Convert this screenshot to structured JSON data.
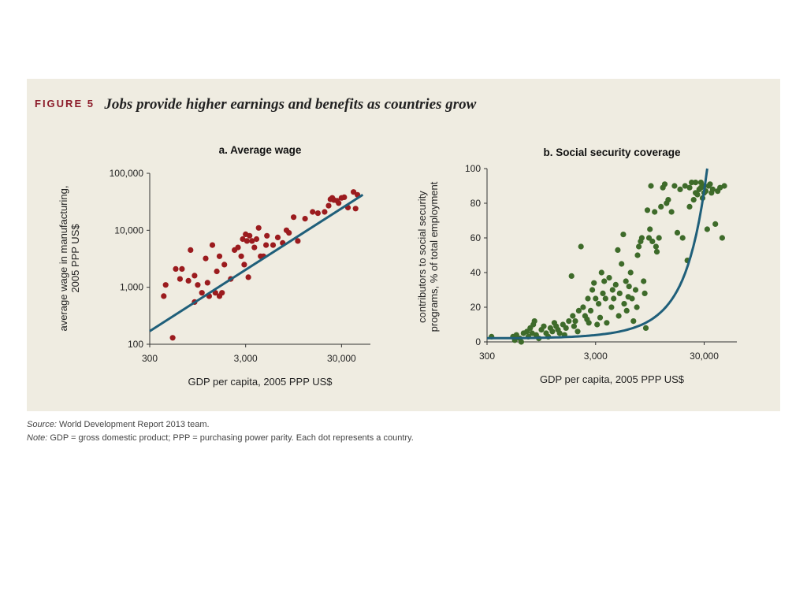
{
  "figure": {
    "label": "FIGURE 5",
    "title": "Jobs provide higher earnings and benefits as countries grow"
  },
  "colors": {
    "panel_bg": "#efece1",
    "wage_dots": "#9b1b1e",
    "coverage_dots": "#3e6b2a",
    "fit_line": "#1f5f7a",
    "label_accent": "#8c1c2a"
  },
  "notes": {
    "source_label": "Source:",
    "source_text": " World Development Report 2013 team.",
    "note_label": "Note:",
    "note_text": " GDP = gross domestic product; PPP = purchasing power parity. Each dot represents a country."
  },
  "chart_data": [
    {
      "type": "scatter",
      "title": "a.  Average wage",
      "xlabel": "GDP per capita, 2005 PPP US$",
      "ylabel_lines": [
        "average wage in manufacturing,",
        "2005 PPP US$"
      ],
      "x_scale": "log",
      "y_scale": "log",
      "xlim": [
        300,
        60000
      ],
      "ylim": [
        100,
        100000
      ],
      "x_ticks": [
        300,
        3000,
        30000
      ],
      "x_tick_labels": [
        "300",
        "3,000",
        "30,000"
      ],
      "y_ticks": [
        100,
        1000,
        10000,
        100000
      ],
      "y_tick_labels": [
        "100",
        "1,000",
        "10,000",
        "100,000"
      ],
      "trend_line": {
        "x": [
          300,
          50000
        ],
        "y": [
          170,
          42000
        ]
      },
      "points": [
        [
          420,
          700
        ],
        [
          440,
          1100
        ],
        [
          520,
          130
        ],
        [
          560,
          2100
        ],
        [
          620,
          1400
        ],
        [
          650,
          2100
        ],
        [
          760,
          1300
        ],
        [
          800,
          4500
        ],
        [
          880,
          1600
        ],
        [
          880,
          550
        ],
        [
          950,
          1100
        ],
        [
          1050,
          800
        ],
        [
          1150,
          3200
        ],
        [
          1200,
          1200
        ],
        [
          1250,
          700
        ],
        [
          1350,
          5500
        ],
        [
          1450,
          800
        ],
        [
          1500,
          1900
        ],
        [
          1600,
          3500
        ],
        [
          1600,
          700
        ],
        [
          1700,
          800
        ],
        [
          1800,
          2500
        ],
        [
          2100,
          1400
        ],
        [
          2300,
          4500
        ],
        [
          2500,
          5000
        ],
        [
          2700,
          3500
        ],
        [
          2800,
          7000
        ],
        [
          2900,
          2500
        ],
        [
          3000,
          8500
        ],
        [
          3100,
          6500
        ],
        [
          3200,
          1500
        ],
        [
          3300,
          8000
        ],
        [
          3500,
          6500
        ],
        [
          3700,
          5000
        ],
        [
          3900,
          7000
        ],
        [
          4100,
          11000
        ],
        [
          4300,
          3500
        ],
        [
          4600,
          3500
        ],
        [
          4900,
          5500
        ],
        [
          5000,
          8000
        ],
        [
          5800,
          5500
        ],
        [
          6500,
          7500
        ],
        [
          7300,
          6000
        ],
        [
          8000,
          10000
        ],
        [
          8500,
          9000
        ],
        [
          9500,
          17000
        ],
        [
          10500,
          6500
        ],
        [
          12500,
          16000
        ],
        [
          15000,
          21000
        ],
        [
          17000,
          20000
        ],
        [
          20000,
          21000
        ],
        [
          22000,
          27000
        ],
        [
          23000,
          35000
        ],
        [
          24000,
          37000
        ],
        [
          25000,
          34000
        ],
        [
          27000,
          33000
        ],
        [
          30000,
          37000
        ],
        [
          32000,
          38000
        ],
        [
          28000,
          30000
        ],
        [
          35000,
          25000
        ],
        [
          40000,
          47000
        ],
        [
          44000,
          42000
        ],
        [
          42000,
          24000
        ]
      ]
    },
    {
      "type": "scatter",
      "title": "b.  Social security coverage",
      "xlabel": "GDP per capita, 2005 PPP US$",
      "ylabel_lines": [
        "contributors to social security",
        "programs, % of total employment"
      ],
      "x_scale": "log",
      "y_scale": "linear",
      "xlim": [
        300,
        60000
      ],
      "ylim": [
        0,
        100
      ],
      "x_ticks": [
        300,
        3000,
        30000
      ],
      "x_tick_labels": [
        "300",
        "3,000",
        "30,000"
      ],
      "y_ticks": [
        0,
        20,
        40,
        60,
        80,
        100
      ],
      "y_tick_labels": [
        "0",
        "20",
        "40",
        "60",
        "80",
        "100"
      ],
      "trend_curve": {
        "x_start": 300,
        "x_end": 32000,
        "a": 2.14,
        "b": 0.0001188
      },
      "points": [
        [
          330,
          3
        ],
        [
          520,
          3
        ],
        [
          540,
          1
        ],
        [
          560,
          4
        ],
        [
          600,
          2
        ],
        [
          620,
          0
        ],
        [
          650,
          5
        ],
        [
          700,
          6
        ],
        [
          720,
          3
        ],
        [
          750,
          8
        ],
        [
          780,
          5
        ],
        [
          800,
          10
        ],
        [
          820,
          12
        ],
        [
          850,
          4
        ],
        [
          900,
          2
        ],
        [
          950,
          7
        ],
        [
          1000,
          9
        ],
        [
          1050,
          5
        ],
        [
          1100,
          3
        ],
        [
          1150,
          8
        ],
        [
          1200,
          6
        ],
        [
          1250,
          11
        ],
        [
          1300,
          9
        ],
        [
          1350,
          7
        ],
        [
          1400,
          5
        ],
        [
          1500,
          10
        ],
        [
          1550,
          4
        ],
        [
          1600,
          8
        ],
        [
          1700,
          12
        ],
        [
          1800,
          38
        ],
        [
          1850,
          15
        ],
        [
          1900,
          9
        ],
        [
          1950,
          12
        ],
        [
          2050,
          6
        ],
        [
          2100,
          18
        ],
        [
          2200,
          55
        ],
        [
          2300,
          20
        ],
        [
          2400,
          15
        ],
        [
          2500,
          13
        ],
        [
          2550,
          25
        ],
        [
          2600,
          11
        ],
        [
          2700,
          18
        ],
        [
          2800,
          30
        ],
        [
          2900,
          34
        ],
        [
          3000,
          25
        ],
        [
          3100,
          10
        ],
        [
          3200,
          22
        ],
        [
          3300,
          14
        ],
        [
          3400,
          40
        ],
        [
          3500,
          28
        ],
        [
          3600,
          35
        ],
        [
          3700,
          25
        ],
        [
          3800,
          11
        ],
        [
          4000,
          37
        ],
        [
          4200,
          20
        ],
        [
          4300,
          30
        ],
        [
          4400,
          25
        ],
        [
          4600,
          33
        ],
        [
          4800,
          53
        ],
        [
          4900,
          15
        ],
        [
          5000,
          28
        ],
        [
          5200,
          45
        ],
        [
          5400,
          62
        ],
        [
          5500,
          22
        ],
        [
          5700,
          35
        ],
        [
          5800,
          18
        ],
        [
          6000,
          26
        ],
        [
          6100,
          32
        ],
        [
          6300,
          40
        ],
        [
          6500,
          25
        ],
        [
          6700,
          12
        ],
        [
          7000,
          30
        ],
        [
          7200,
          20
        ],
        [
          7300,
          50
        ],
        [
          7500,
          55
        ],
        [
          7800,
          58
        ],
        [
          8000,
          60
        ],
        [
          8300,
          35
        ],
        [
          8500,
          28
        ],
        [
          8700,
          8
        ],
        [
          9000,
          76
        ],
        [
          9300,
          60
        ],
        [
          9500,
          65
        ],
        [
          9700,
          90
        ],
        [
          10000,
          58
        ],
        [
          10500,
          75
        ],
        [
          10800,
          55
        ],
        [
          11000,
          52
        ],
        [
          11500,
          60
        ],
        [
          12000,
          78
        ],
        [
          12500,
          89
        ],
        [
          13000,
          91
        ],
        [
          13500,
          80
        ],
        [
          14000,
          82
        ],
        [
          15000,
          75
        ],
        [
          16000,
          90
        ],
        [
          17000,
          63
        ],
        [
          18000,
          88
        ],
        [
          19000,
          60
        ],
        [
          20000,
          90
        ],
        [
          21000,
          47
        ],
        [
          22000,
          89
        ],
        [
          23000,
          92
        ],
        [
          24000,
          82
        ],
        [
          25000,
          86
        ],
        [
          26000,
          85
        ],
        [
          27000,
          88
        ],
        [
          28000,
          92
        ],
        [
          29000,
          83
        ],
        [
          30000,
          90
        ],
        [
          31000,
          87
        ],
        [
          32000,
          65
        ],
        [
          33000,
          90
        ],
        [
          34000,
          91
        ],
        [
          35000,
          86
        ],
        [
          36000,
          88
        ],
        [
          38000,
          68
        ],
        [
          40000,
          87
        ],
        [
          42000,
          89
        ],
        [
          44000,
          60
        ],
        [
          46000,
          90
        ],
        [
          30000,
          86
        ],
        [
          25000,
          92
        ],
        [
          22000,
          78
        ],
        [
          28000,
          89
        ]
      ]
    }
  ]
}
